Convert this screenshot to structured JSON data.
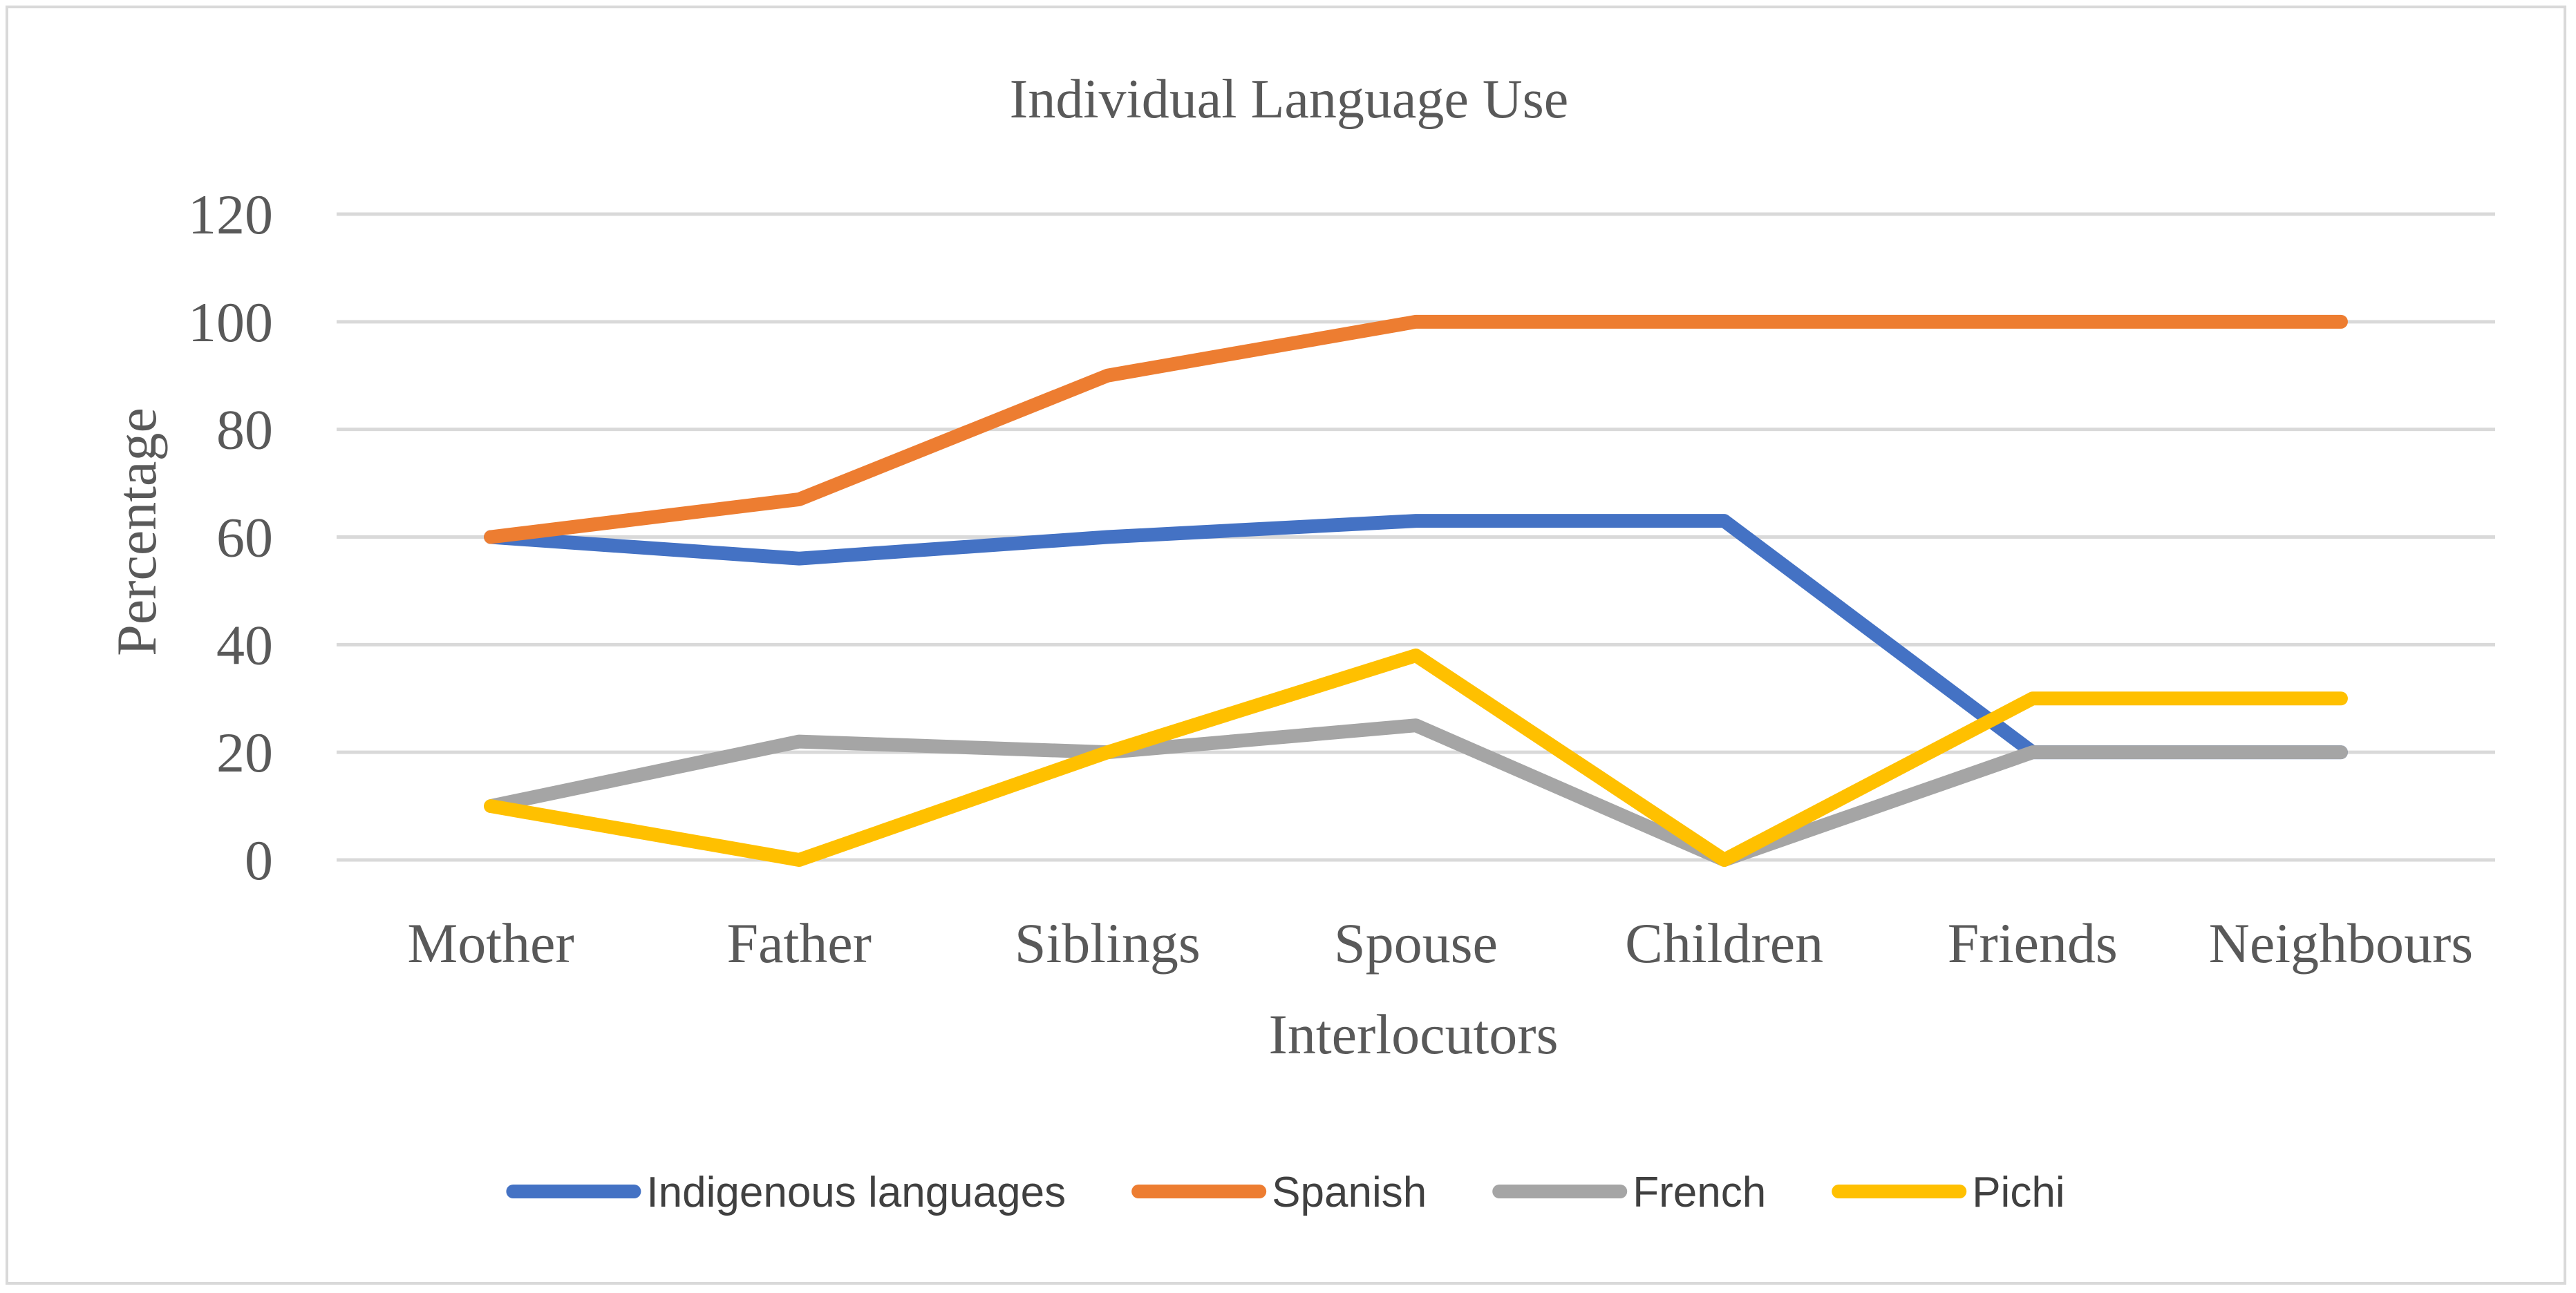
{
  "chart_data": {
    "type": "line",
    "title": "Individual Language Use",
    "xlabel": "Interlocutors",
    "ylabel": "Percentage",
    "categories": [
      "Mother",
      "Father",
      "Siblings",
      "Spouse",
      "Children",
      "Friends",
      "Neighbours"
    ],
    "ylim": [
      0,
      120
    ],
    "yticks": [
      "0",
      "20",
      "40",
      "60",
      "80",
      "100",
      "120"
    ],
    "grid": true,
    "legend_position": "bottom",
    "series": [
      {
        "name": "Indigenous languages",
        "color": "#4472c4",
        "values": [
          60,
          56,
          60,
          63,
          63,
          20,
          20
        ]
      },
      {
        "name": "Spanish",
        "color": "#ed7d31",
        "values": [
          60,
          67,
          90,
          100,
          100,
          100,
          100
        ]
      },
      {
        "name": "French",
        "color": "#a5a5a5",
        "values": [
          10,
          22,
          20,
          25,
          0,
          20,
          20
        ]
      },
      {
        "name": "Pichi",
        "color": "#ffc000",
        "values": [
          10,
          0,
          20,
          38,
          0,
          30,
          30
        ]
      }
    ]
  }
}
